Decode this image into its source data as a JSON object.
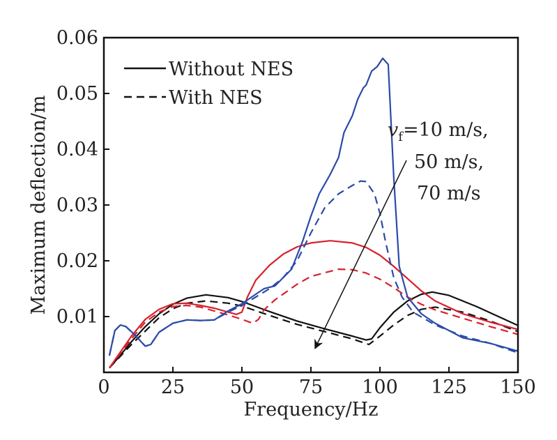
{
  "chart_data": {
    "type": "line",
    "title": "",
    "xlabel": "Frequency/Hz",
    "ylabel": "Maximum deflection/m",
    "xlim": [
      0,
      150
    ],
    "ylim": [
      0,
      0.06
    ],
    "xticks": [
      0,
      25,
      50,
      75,
      100,
      125,
      150
    ],
    "xtick_labels": [
      "0",
      "25",
      "50",
      "75",
      "100",
      "125",
      "150"
    ],
    "yticks": [
      0.01,
      0.02,
      0.03,
      0.04,
      0.05,
      0.06
    ],
    "ytick_labels": [
      "0.01",
      "0.02",
      "0.03",
      "0.04",
      "0.05",
      "0.06"
    ],
    "grid": false,
    "legend": {
      "placement": "top-left",
      "entries": [
        {
          "label": "Without NES",
          "style": "solid"
        },
        {
          "label": "With NES",
          "style": "dashed"
        }
      ]
    },
    "annotation": {
      "lines": [
        "=10 m/s,",
        "50 m/s,",
        "70 m/s"
      ],
      "var": "v",
      "sub": "f",
      "arrow_from": [
        109.6,
        0.038
      ],
      "arrow_to": [
        76.5,
        0.0043
      ]
    },
    "series": [
      {
        "color": "#111111",
        "style": "solid",
        "points": [
          [
            2,
            0.0008
          ],
          [
            5,
            0.0025
          ],
          [
            10,
            0.0055
          ],
          [
            15,
            0.0082
          ],
          [
            20,
            0.0105
          ],
          [
            25,
            0.0122
          ],
          [
            30,
            0.0133
          ],
          [
            37,
            0.0139
          ],
          [
            45,
            0.0134
          ],
          [
            50,
            0.0127
          ],
          [
            60,
            0.0109
          ],
          [
            70,
            0.0092
          ],
          [
            80,
            0.0078
          ],
          [
            90,
            0.0065
          ],
          [
            95,
            0.0058
          ],
          [
            97,
            0.006
          ],
          [
            100,
            0.008
          ],
          [
            105,
            0.0108
          ],
          [
            110,
            0.0128
          ],
          [
            115,
            0.014
          ],
          [
            119,
            0.0144
          ],
          [
            125,
            0.0138
          ],
          [
            135,
            0.0118
          ],
          [
            150,
            0.0084
          ]
        ]
      },
      {
        "color": "#111111",
        "style": "dashed",
        "points": [
          [
            2,
            0.0008
          ],
          [
            10,
            0.005
          ],
          [
            20,
            0.0098
          ],
          [
            25,
            0.0114
          ],
          [
            30,
            0.0124
          ],
          [
            37,
            0.0128
          ],
          [
            45,
            0.0124
          ],
          [
            50,
            0.0119
          ],
          [
            60,
            0.0102
          ],
          [
            70,
            0.0086
          ],
          [
            80,
            0.0073
          ],
          [
            90,
            0.006
          ],
          [
            96,
            0.005
          ],
          [
            100,
            0.0065
          ],
          [
            105,
            0.0085
          ],
          [
            110,
            0.0102
          ],
          [
            115,
            0.0113
          ],
          [
            120,
            0.0117
          ],
          [
            130,
            0.0108
          ],
          [
            140,
            0.0092
          ],
          [
            150,
            0.0073
          ]
        ]
      },
      {
        "color": "#d8202c",
        "style": "solid",
        "points": [
          [
            2,
            0.0008
          ],
          [
            10,
            0.0065
          ],
          [
            15,
            0.0095
          ],
          [
            20,
            0.0113
          ],
          [
            25,
            0.0123
          ],
          [
            30,
            0.0124
          ],
          [
            35,
            0.012
          ],
          [
            40,
            0.0115
          ],
          [
            45,
            0.0108
          ],
          [
            48,
            0.0104
          ],
          [
            50,
            0.0108
          ],
          [
            52,
            0.0135
          ],
          [
            55,
            0.0165
          ],
          [
            60,
            0.0192
          ],
          [
            65,
            0.0212
          ],
          [
            70,
            0.0225
          ],
          [
            75,
            0.0232
          ],
          [
            82,
            0.0236
          ],
          [
            90,
            0.0232
          ],
          [
            95,
            0.0224
          ],
          [
            100,
            0.021
          ],
          [
            105,
            0.019
          ],
          [
            110,
            0.0168
          ],
          [
            115,
            0.0146
          ],
          [
            120,
            0.0128
          ],
          [
            130,
            0.0105
          ],
          [
            140,
            0.009
          ],
          [
            150,
            0.0077
          ]
        ]
      },
      {
        "color": "#d8202c",
        "style": "dashed",
        "points": [
          [
            2,
            0.0008
          ],
          [
            10,
            0.006
          ],
          [
            15,
            0.009
          ],
          [
            20,
            0.0108
          ],
          [
            25,
            0.0118
          ],
          [
            30,
            0.012
          ],
          [
            35,
            0.0117
          ],
          [
            40,
            0.011
          ],
          [
            45,
            0.0103
          ],
          [
            50,
            0.0095
          ],
          [
            54,
            0.0088
          ],
          [
            56,
            0.0095
          ],
          [
            58,
            0.0112
          ],
          [
            62,
            0.013
          ],
          [
            70,
            0.0158
          ],
          [
            75,
            0.0172
          ],
          [
            85,
            0.0185
          ],
          [
            90,
            0.0184
          ],
          [
            95,
            0.0178
          ],
          [
            100,
            0.0167
          ],
          [
            105,
            0.0152
          ],
          [
            110,
            0.0135
          ],
          [
            115,
            0.0122
          ],
          [
            120,
            0.0112
          ],
          [
            130,
            0.0097
          ],
          [
            140,
            0.0082
          ],
          [
            150,
            0.0068
          ]
        ]
      },
      {
        "color": "#2b4aa8",
        "style": "solid",
        "points": [
          [
            2,
            0.003
          ],
          [
            4,
            0.0075
          ],
          [
            6,
            0.0085
          ],
          [
            8,
            0.0082
          ],
          [
            11,
            0.0068
          ],
          [
            15,
            0.0047
          ],
          [
            17,
            0.005
          ],
          [
            20,
            0.0072
          ],
          [
            25,
            0.0088
          ],
          [
            30,
            0.0094
          ],
          [
            35,
            0.0093
          ],
          [
            40,
            0.0094
          ],
          [
            45,
            0.011
          ],
          [
            50,
            0.0123
          ],
          [
            55,
            0.014
          ],
          [
            58,
            0.015
          ],
          [
            62,
            0.0155
          ],
          [
            68,
            0.0185
          ],
          [
            72,
            0.0235
          ],
          [
            75,
            0.028
          ],
          [
            78,
            0.032
          ],
          [
            82,
            0.0355
          ],
          [
            85,
            0.0385
          ],
          [
            87,
            0.043
          ],
          [
            90,
            0.046
          ],
          [
            92,
            0.049
          ],
          [
            94,
            0.051
          ],
          [
            95,
            0.0515
          ],
          [
            97,
            0.054
          ],
          [
            99,
            0.0548
          ],
          [
            101,
            0.0563
          ],
          [
            103,
            0.0552
          ],
          [
            105,
            0.035
          ],
          [
            107,
            0.019
          ],
          [
            110,
            0.0135
          ],
          [
            115,
            0.0105
          ],
          [
            120,
            0.0088
          ],
          [
            125,
            0.0075
          ],
          [
            130,
            0.0062
          ],
          [
            140,
            0.0052
          ],
          [
            150,
            0.0038
          ]
        ]
      },
      {
        "color": "#2b4aa8",
        "style": "dashed",
        "points": [
          [
            2,
            0.003
          ],
          [
            4,
            0.0075
          ],
          [
            6,
            0.0085
          ],
          [
            8,
            0.0082
          ],
          [
            11,
            0.0068
          ],
          [
            15,
            0.0047
          ],
          [
            17,
            0.005
          ],
          [
            20,
            0.0072
          ],
          [
            25,
            0.0088
          ],
          [
            30,
            0.0094
          ],
          [
            35,
            0.0093
          ],
          [
            40,
            0.0094
          ],
          [
            45,
            0.0108
          ],
          [
            50,
            0.012
          ],
          [
            55,
            0.0135
          ],
          [
            60,
            0.015
          ],
          [
            65,
            0.017
          ],
          [
            70,
            0.02
          ],
          [
            75,
            0.025
          ],
          [
            80,
            0.0295
          ],
          [
            85,
            0.032
          ],
          [
            90,
            0.0335
          ],
          [
            93,
            0.0343
          ],
          [
            95,
            0.0342
          ],
          [
            98,
            0.032
          ],
          [
            100,
            0.0285
          ],
          [
            102,
            0.0235
          ],
          [
            105,
            0.017
          ],
          [
            108,
            0.0135
          ],
          [
            112,
            0.0108
          ],
          [
            120,
            0.0085
          ],
          [
            130,
            0.0065
          ],
          [
            140,
            0.0052
          ],
          [
            150,
            0.0035
          ]
        ]
      }
    ]
  }
}
